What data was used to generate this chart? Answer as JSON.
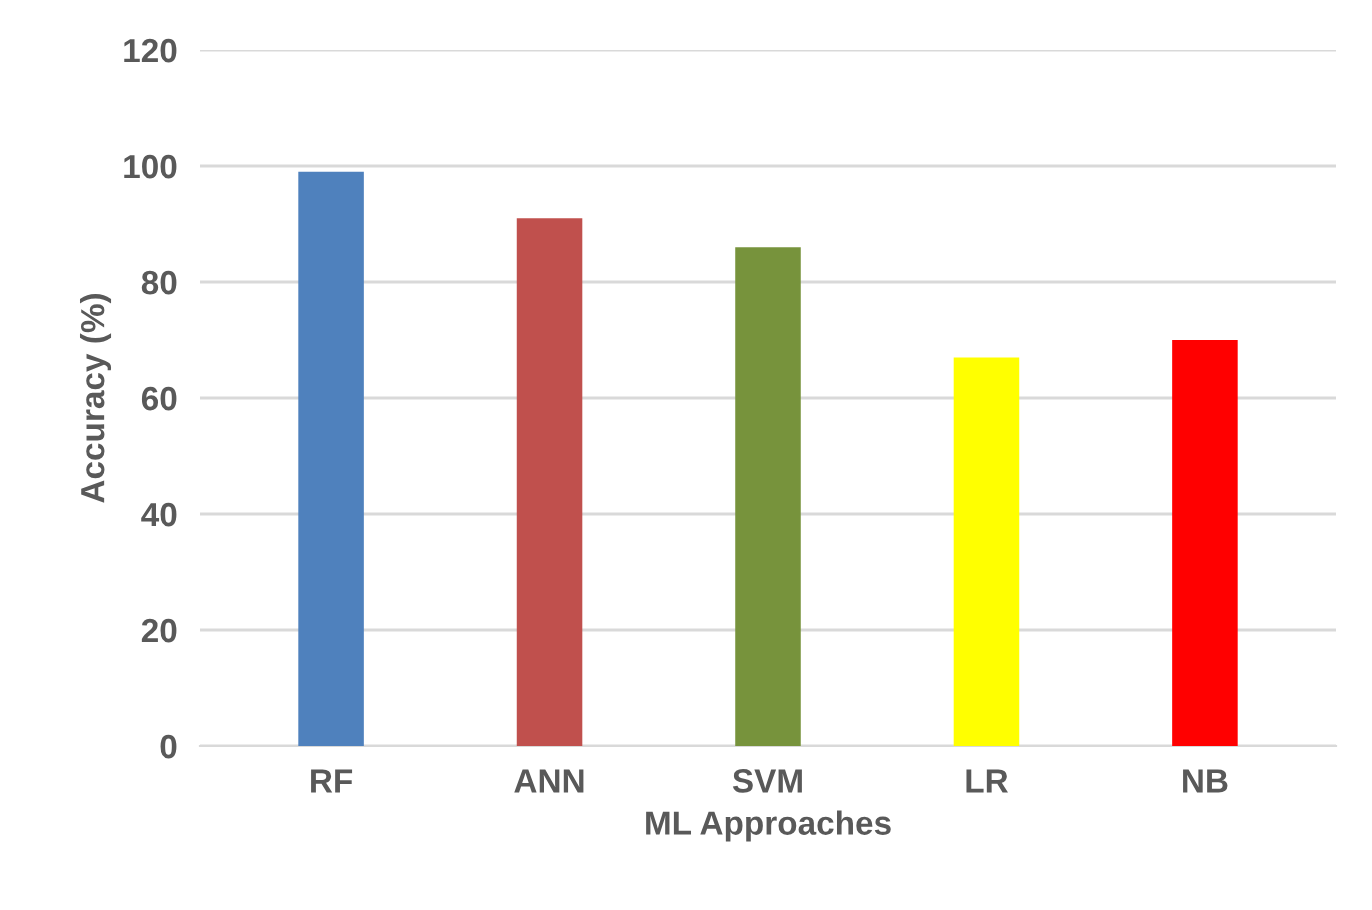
{
  "chart_data": {
    "type": "bar",
    "xlabel": "ML Approaches",
    "ylabel": "Accuracy (%)",
    "categories": [
      "RF",
      "ANN",
      "SVM",
      "LR",
      "NB"
    ],
    "values": [
      99,
      91,
      86,
      67,
      70
    ],
    "colors": [
      "#4f81bd",
      "#c0504d",
      "#77933c",
      "#ffff00",
      "#ff0000"
    ],
    "ylim": [
      0,
      120
    ],
    "yticks": [
      0,
      20,
      40,
      60,
      80,
      100,
      120
    ],
    "grid": "y",
    "legend": false
  }
}
